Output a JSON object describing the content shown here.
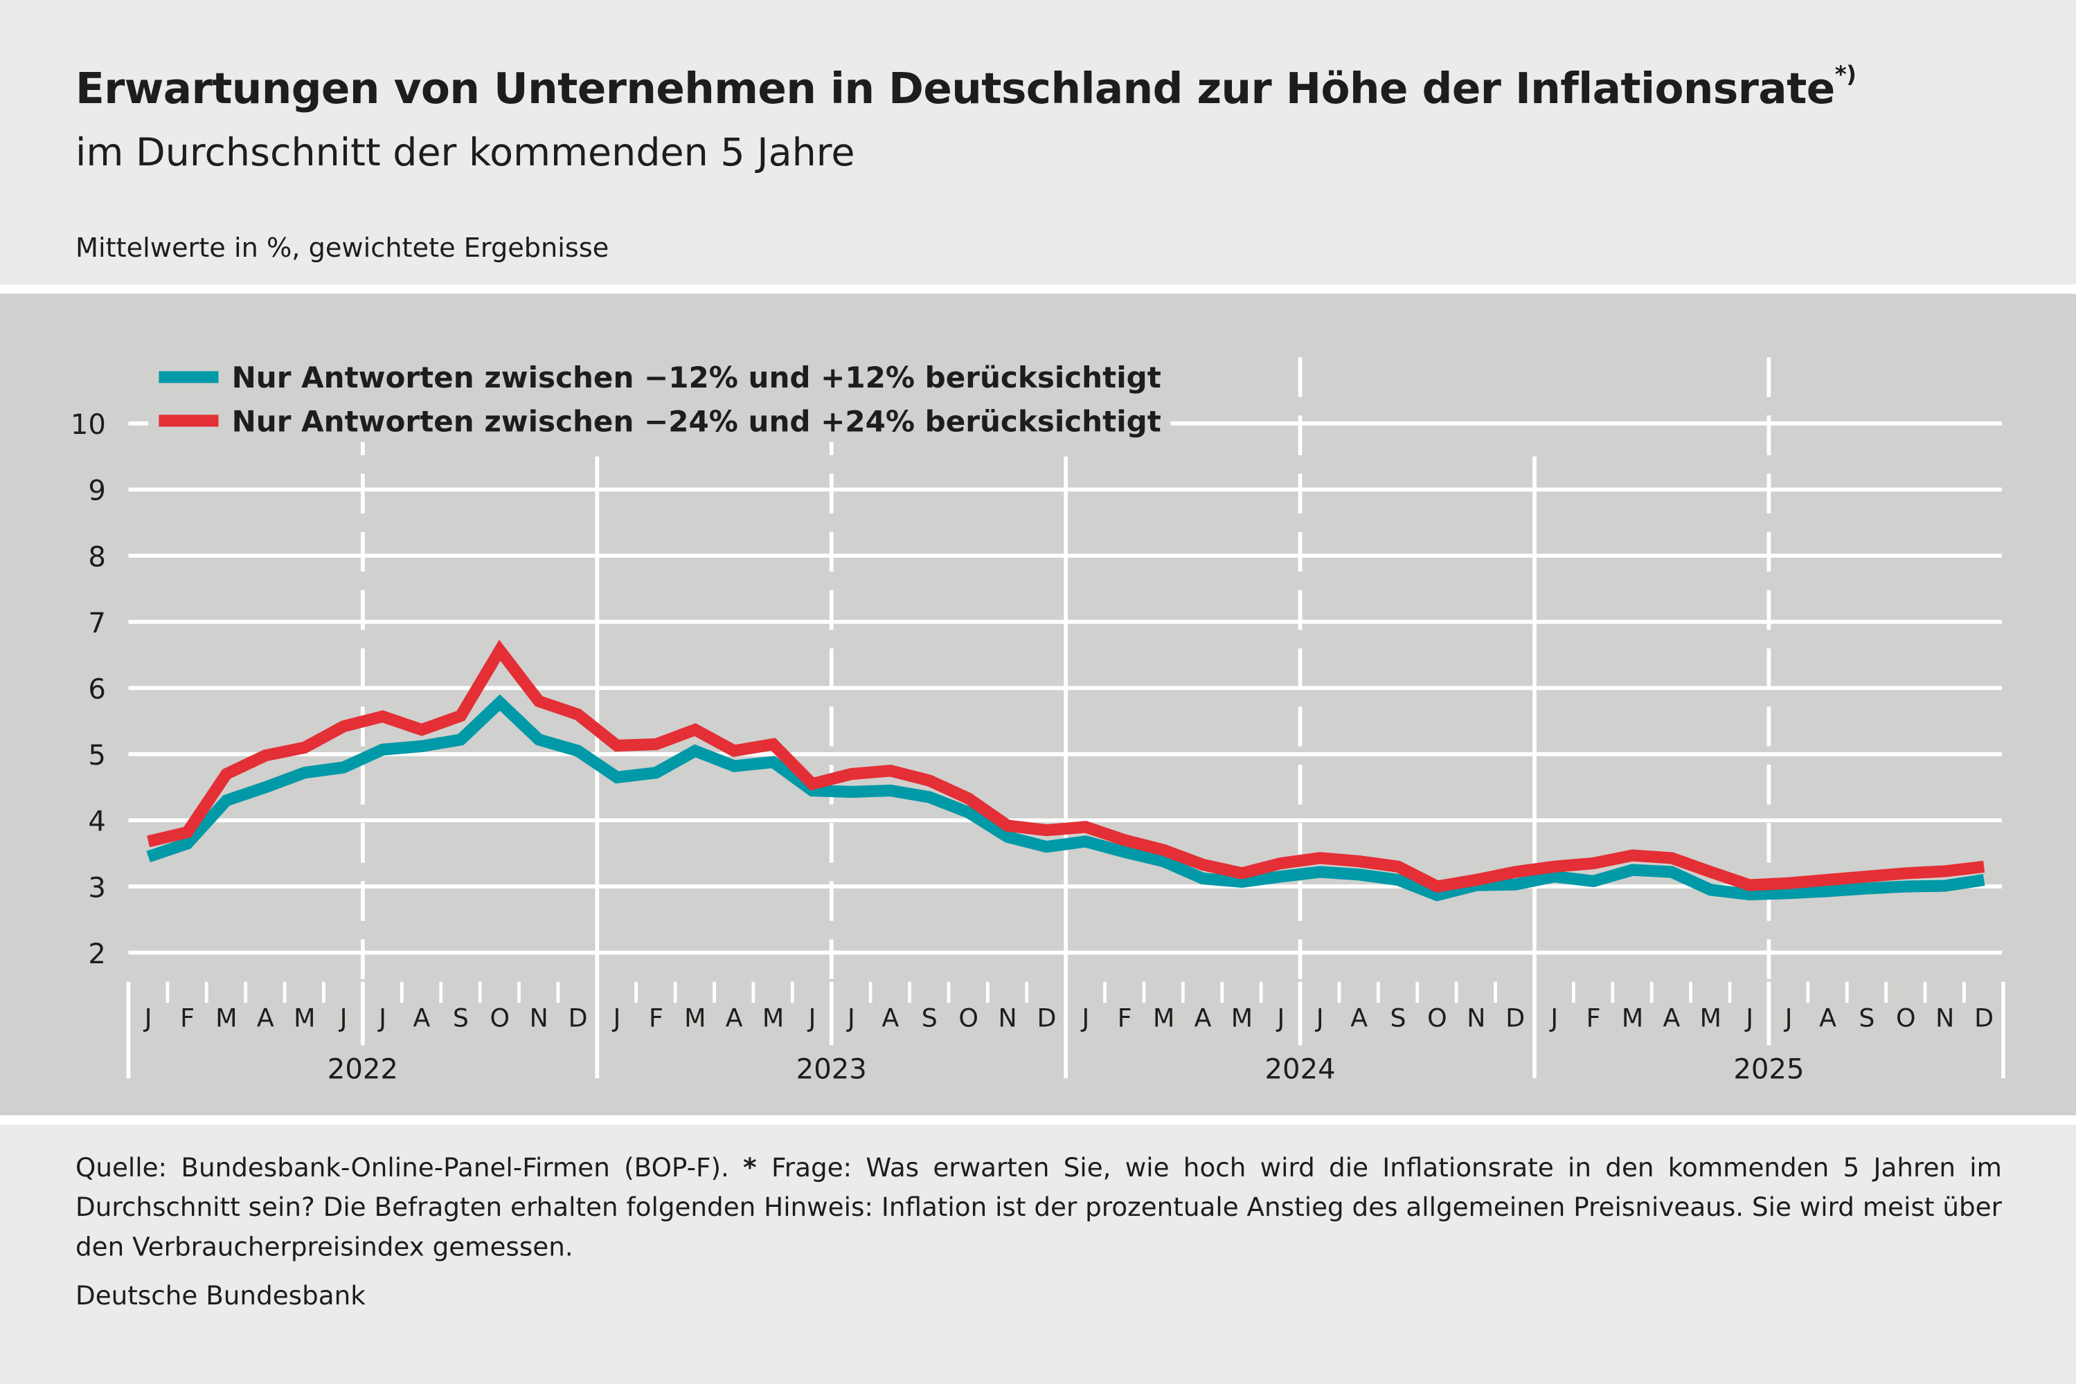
{
  "header": {
    "title": "Erwartungen von Unternehmen in Deutschland zur Höhe der Inflationsrate",
    "title_note": "*)",
    "subtitle": "im Durchschnitt der kommenden 5 Jahre",
    "unit": "Mittelwerte in %, gewichtete Ergebnisse"
  },
  "chart_data": {
    "type": "line",
    "title": "Erwartungen von Unternehmen in Deutschland zur Höhe der Inflationsrate",
    "ylim": [
      2,
      10
    ],
    "yticks": [
      "2",
      "3",
      "4",
      "5",
      "6",
      "7",
      "8",
      "9",
      "10"
    ],
    "grid": true,
    "legend_placement": "top-left",
    "years": [
      "2022",
      "2023",
      "2024",
      "2025"
    ],
    "month_labels": [
      "J",
      "F",
      "M",
      "A",
      "M",
      "J",
      "J",
      "A",
      "S",
      "O",
      "N",
      "D"
    ],
    "series": [
      {
        "name": "Nur Antworten zwischen −12% und +12% berücksichtigt",
        "color": "#0099a8",
        "values": [
          3.45,
          3.65,
          4.3,
          4.5,
          4.72,
          4.8,
          5.07,
          5.12,
          5.22,
          5.78,
          5.22,
          5.05,
          4.65,
          4.72,
          5.05,
          4.82,
          4.88,
          4.45,
          4.43,
          4.45,
          4.35,
          4.12,
          3.75,
          3.6,
          3.68,
          3.52,
          3.38,
          3.12,
          3.07,
          3.15,
          3.22,
          3.18,
          3.1,
          2.87,
          3.02,
          3.03,
          3.15,
          3.08,
          3.25,
          3.22,
          2.95,
          2.88,
          2.9,
          2.93,
          2.97,
          3.0,
          3.01,
          3.1
        ]
      },
      {
        "name": "Nur Antworten zwischen −24% und +24% berücksichtigt",
        "color": "#e32f35",
        "values": [
          3.68,
          3.82,
          4.7,
          4.98,
          5.1,
          5.42,
          5.57,
          5.37,
          5.58,
          6.57,
          5.8,
          5.6,
          5.13,
          5.15,
          5.37,
          5.05,
          5.15,
          4.55,
          4.7,
          4.75,
          4.6,
          4.33,
          3.92,
          3.85,
          3.9,
          3.7,
          3.55,
          3.33,
          3.2,
          3.35,
          3.43,
          3.38,
          3.3,
          3.0,
          3.1,
          3.22,
          3.3,
          3.35,
          3.47,
          3.43,
          3.22,
          3.02,
          3.05,
          3.1,
          3.15,
          3.2,
          3.23,
          3.3
        ]
      }
    ]
  },
  "footer": {
    "source": "Quelle: Bundesbank-Online-Panel-Firmen (BOP-F). ",
    "star": "* ",
    "note": "Frage: Was erwarten Sie, wie hoch wird die Inflationsrate in den kommenden 5 Jahren im Durchschnitt sein? Die Befragten erhalten folgenden Hinweis: Inflation ist der prozentuale Anstieg des allgemeinen Preisniveaus. Sie wird meist über den Verbraucherpreisindex gemessen.",
    "brand": "Deutsche Bundesbank"
  }
}
